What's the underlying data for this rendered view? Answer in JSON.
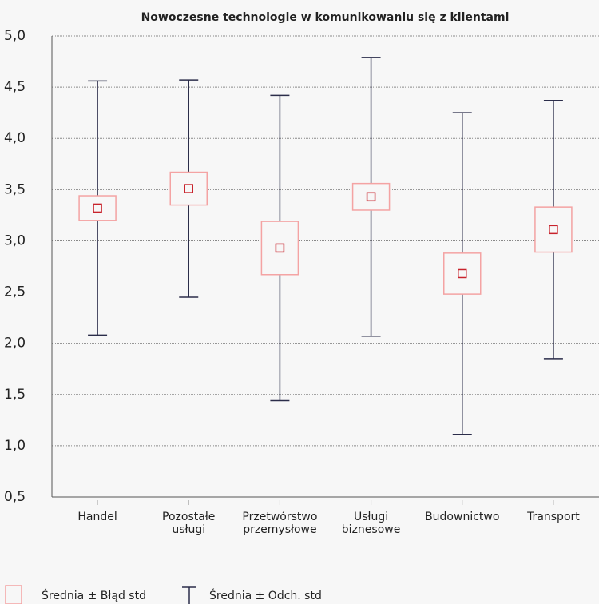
{
  "chart_data": {
    "type": "box",
    "title": "Nowoczesne technologie w komunikowaniu się z klientami",
    "categories": [
      "Handel",
      "Pozostałe usługi",
      "Przetwórstwo przemysłowe",
      "Usługi biznesowe",
      "Budownictwo",
      "Transport"
    ],
    "means": [
      3.32,
      3.51,
      2.93,
      3.43,
      2.68,
      3.11
    ],
    "se": [
      0.12,
      0.16,
      0.26,
      0.13,
      0.2,
      0.22
    ],
    "sd": [
      1.24,
      1.06,
      1.49,
      1.36,
      1.57,
      1.26
    ],
    "ylim": [
      0.5,
      5.0
    ],
    "yticks": [
      {
        "value": 0.5,
        "label": "0,5"
      },
      {
        "value": 1.0,
        "label": "1,0"
      },
      {
        "value": 1.5,
        "label": "1,5"
      },
      {
        "value": 2.0,
        "label": "2,0"
      },
      {
        "value": 2.5,
        "label": "2,5"
      },
      {
        "value": 3.0,
        "label": "3,0"
      },
      {
        "value": 3.5,
        "label": "3,5"
      },
      {
        "value": 4.0,
        "label": "4,0"
      },
      {
        "value": 4.5,
        "label": "4,5"
      },
      {
        "value": 5.0,
        "label": "5,0"
      }
    ],
    "grid": true,
    "box_color": "#f4a3a3",
    "mean_color": "#c8232c",
    "whisker_color": "#2b2d4a",
    "legend": [
      "Średnia ± Błąd std",
      "Średnia ± Odch. std"
    ]
  }
}
